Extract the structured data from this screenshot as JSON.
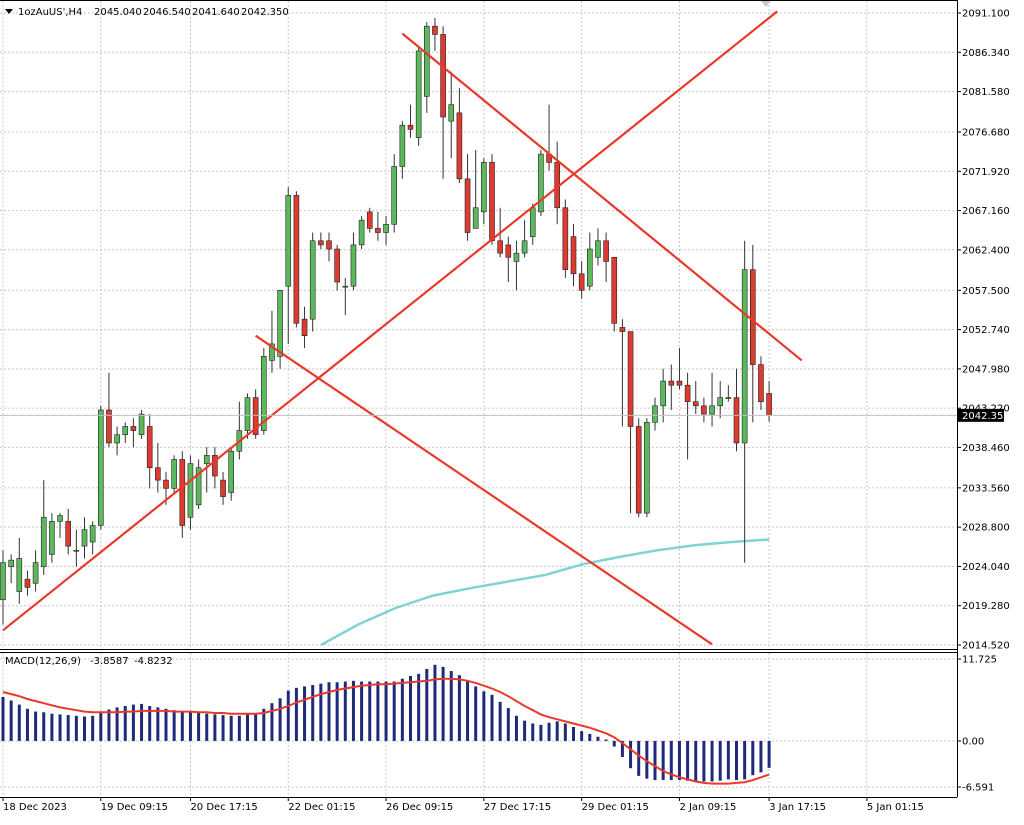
{
  "header": {
    "symbol": "1ozAuUS',H4",
    "open": "2045.040",
    "high": "2046.540",
    "low": "2041.640",
    "close": "2042.350"
  },
  "macd_header": {
    "label": "MACD(12,26,9)",
    "main": "-3.8587",
    "signal": "-4.8232"
  },
  "colors": {
    "bull": "#5cb85c",
    "bear": "#dd3b2f",
    "wick": "#333333",
    "ma": "#7fd3d3",
    "trendline": "#e8392b",
    "macd_hist": "#1f2a7a",
    "macd_signal": "#e8392b",
    "grid": "#c8c8c8"
  },
  "chart_data": [
    {
      "type": "candlestick",
      "timeframe": "H4",
      "ylim": [
        2014.52,
        2091.1
      ],
      "y_ticks": [
        "2091.100",
        "2086.340",
        "2081.580",
        "2076.680",
        "2071.920",
        "2067.160",
        "2062.400",
        "2057.500",
        "2052.740",
        "2047.980",
        "2043.220",
        "2038.460",
        "2033.560",
        "2028.800",
        "2024.040",
        "2019.280",
        "2014.520"
      ],
      "x_ticks": [
        "18 Dec 2023",
        "19 Dec 09:15",
        "20 Dec 17:15",
        "22 Dec 01:15",
        "26 Dec 09:15",
        "27 Dec 17:15",
        "29 Dec 01:15",
        "2 Jan 09:15",
        "3 Jan 17:15",
        "5 Jan 01:15"
      ],
      "x_tick_bars": [
        0,
        12,
        23,
        35,
        47,
        59,
        71,
        83,
        94,
        106
      ],
      "current_price": "2042.350",
      "ohlc": [
        [
          2020.0,
          2026.0,
          2017.0,
          2024.5
        ],
        [
          2024.0,
          2025.5,
          2022.0,
          2024.8
        ],
        [
          2021.0,
          2027.5,
          2019.5,
          2025.0
        ],
        [
          2022.5,
          2023.5,
          2020.5,
          2021.5
        ],
        [
          2022.0,
          2026.0,
          2021.0,
          2024.5
        ],
        [
          2024.0,
          2034.5,
          2023.0,
          2030.0
        ],
        [
          2025.5,
          2030.5,
          2024.5,
          2029.5
        ],
        [
          2029.5,
          2030.5,
          2027.5,
          2030.2
        ],
        [
          2029.5,
          2031.0,
          2025.5,
          2026.5
        ],
        [
          2026.0,
          2028.5,
          2024.0,
          2026.0
        ],
        [
          2026.5,
          2030.0,
          2025.0,
          2028.5
        ],
        [
          2027.0,
          2029.5,
          2025.5,
          2029.0
        ],
        [
          2029.0,
          2043.5,
          2028.5,
          2043.0
        ],
        [
          2043.0,
          2047.5,
          2038.5,
          2039.0
        ],
        [
          2039.0,
          2041.0,
          2037.5,
          2040.0
        ],
        [
          2040.0,
          2041.5,
          2039.0,
          2041.0
        ],
        [
          2041.0,
          2042.0,
          2038.5,
          2040.5
        ],
        [
          2040.0,
          2043.0,
          2039.5,
          2042.5
        ],
        [
          2041.0,
          2042.5,
          2033.5,
          2036.0
        ],
        [
          2036.0,
          2039.0,
          2033.0,
          2034.5
        ],
        [
          2034.5,
          2035.5,
          2031.5,
          2033.5
        ],
        [
          2033.5,
          2037.5,
          2033.0,
          2037.0
        ],
        [
          2037.0,
          2038.0,
          2027.5,
          2029.0
        ],
        [
          2030.0,
          2037.5,
          2028.5,
          2036.5
        ],
        [
          2031.5,
          2037.0,
          2031.0,
          2036.0
        ],
        [
          2036.5,
          2038.5,
          2033.0,
          2037.5
        ],
        [
          2037.5,
          2038.5,
          2033.5,
          2035.0
        ],
        [
          2034.5,
          2035.5,
          2031.5,
          2032.5
        ],
        [
          2033.0,
          2038.5,
          2032.0,
          2038.0
        ],
        [
          2038.0,
          2044.0,
          2037.0,
          2040.5
        ],
        [
          2040.5,
          2045.0,
          2039.5,
          2044.5
        ],
        [
          2044.5,
          2045.5,
          2039.5,
          2040.0
        ],
        [
          2040.5,
          2050.5,
          2040.0,
          2049.5
        ],
        [
          2049.0,
          2055.0,
          2047.5,
          2051.0
        ],
        [
          2049.5,
          2057.0,
          2048.0,
          2057.5
        ],
        [
          2058.0,
          2070.0,
          2051.0,
          2069.0
        ],
        [
          2069.0,
          2069.5,
          2053.0,
          2053.5
        ],
        [
          2054.0,
          2055.5,
          2050.5,
          2052.0
        ],
        [
          2054.0,
          2064.5,
          2052.5,
          2063.5
        ],
        [
          2063.5,
          2064.5,
          2062.5,
          2063.0
        ],
        [
          2063.5,
          2064.5,
          2061.0,
          2062.5
        ],
        [
          2062.5,
          2063.0,
          2057.5,
          2058.5
        ],
        [
          2058.0,
          2059.0,
          2054.5,
          2058.0
        ],
        [
          2058.0,
          2064.5,
          2057.5,
          2063.0
        ],
        [
          2063.0,
          2066.5,
          2062.5,
          2066.0
        ],
        [
          2067.0,
          2067.5,
          2064.5,
          2065.0
        ],
        [
          2065.0,
          2067.0,
          2063.5,
          2064.5
        ],
        [
          2064.5,
          2066.5,
          2063.0,
          2065.5
        ],
        [
          2065.5,
          2074.0,
          2064.5,
          2072.5
        ],
        [
          2072.5,
          2078.0,
          2071.0,
          2077.5
        ],
        [
          2077.5,
          2080.0,
          2076.0,
          2077.0
        ],
        [
          2076.0,
          2087.0,
          2075.0,
          2086.5
        ],
        [
          2081.0,
          2090.0,
          2079.0,
          2089.5
        ],
        [
          2089.5,
          2090.5,
          2086.5,
          2088.5
        ],
        [
          2088.5,
          2089.5,
          2071.0,
          2078.5
        ],
        [
          2078.0,
          2084.0,
          2073.5,
          2080.0
        ],
        [
          2079.0,
          2082.0,
          2070.5,
          2071.0
        ],
        [
          2071.0,
          2074.0,
          2063.5,
          2064.5
        ],
        [
          2065.0,
          2074.5,
          2065.0,
          2067.5
        ],
        [
          2067.0,
          2073.5,
          2065.5,
          2073.0
        ],
        [
          2073.0,
          2074.0,
          2063.0,
          2063.5
        ],
        [
          2063.5,
          2067.5,
          2061.5,
          2062.0
        ],
        [
          2063.0,
          2064.0,
          2058.5,
          2061.5
        ],
        [
          2061.0,
          2063.5,
          2057.5,
          2062.0
        ],
        [
          2062.0,
          2066.0,
          2061.5,
          2063.5
        ],
        [
          2064.0,
          2068.0,
          2063.0,
          2067.5
        ],
        [
          2067.0,
          2074.5,
          2066.5,
          2074.0
        ],
        [
          2074.0,
          2080.0,
          2072.0,
          2073.0
        ],
        [
          2073.0,
          2075.5,
          2065.5,
          2067.5
        ],
        [
          2067.5,
          2068.5,
          2059.0,
          2060.0
        ],
        [
          2064.0,
          2065.5,
          2058.0,
          2059.5
        ],
        [
          2059.5,
          2061.0,
          2056.5,
          2057.5
        ],
        [
          2058.0,
          2064.5,
          2057.5,
          2062.5
        ],
        [
          2061.5,
          2065.0,
          2060.5,
          2063.5
        ],
        [
          2063.5,
          2064.5,
          2058.5,
          2061.0
        ],
        [
          2061.5,
          2061.5,
          2052.5,
          2053.5
        ],
        [
          2053.0,
          2054.0,
          2041.0,
          2052.5
        ],
        [
          2052.5,
          2052.5,
          2030.5,
          2041.0
        ],
        [
          2041.0,
          2042.0,
          2030.0,
          2030.5
        ],
        [
          2030.5,
          2042.0,
          2030.0,
          2041.5
        ],
        [
          2041.5,
          2044.5,
          2040.5,
          2043.5
        ],
        [
          2043.5,
          2048.0,
          2041.5,
          2046.5
        ],
        [
          2046.5,
          2048.5,
          2043.0,
          2046.0
        ],
        [
          2046.5,
          2050.5,
          2045.5,
          2046.0
        ],
        [
          2046.0,
          2047.5,
          2037.0,
          2044.0
        ],
        [
          2044.0,
          2046.5,
          2042.5,
          2043.5
        ],
        [
          2043.5,
          2044.5,
          2041.5,
          2042.5
        ],
        [
          2042.5,
          2047.5,
          2041.0,
          2043.5
        ],
        [
          2043.5,
          2046.5,
          2042.0,
          2044.5
        ],
        [
          2044.5,
          2046.0,
          2044.0,
          2044.5
        ],
        [
          2044.5,
          2048.0,
          2038.0,
          2039.0
        ],
        [
          2039.0,
          2063.5,
          2024.5,
          2060.0
        ],
        [
          2060.0,
          2063.0,
          2041.5,
          2048.5
        ],
        [
          2048.5,
          2049.5,
          2043.0,
          2044.0
        ],
        [
          2045.0,
          2046.5,
          2041.6,
          2042.35
        ]
      ],
      "moving_average_tail": [
        2014.52,
        2017.0,
        2019.0,
        2020.5,
        2021.4,
        2022.2,
        2023.0,
        2024.3,
        2025.2,
        2026.0,
        2026.6,
        2027.0,
        2027.3
      ],
      "ma_start_bar": 39,
      "trendlines": [
        {
          "from": [
            0,
            2016.3
          ],
          "to": [
            95,
            2091.3
          ]
        },
        {
          "from": [
            49,
            2088.6
          ],
          "to": [
            98,
            2049.0
          ]
        },
        {
          "from": [
            31,
            2052.0
          ],
          "to": [
            87,
            2014.6
          ]
        }
      ]
    },
    {
      "type": "bar",
      "title": "MACD(12,26,9)",
      "ylim": [
        -6.591,
        11.725
      ],
      "y_ticks": [
        "11.725",
        "0.00",
        "-6.591"
      ],
      "histogram": [
        6.3,
        5.8,
        5.2,
        4.6,
        4.2,
        4.1,
        3.9,
        3.8,
        3.7,
        3.6,
        3.5,
        3.6,
        4.0,
        4.5,
        4.8,
        5.0,
        5.2,
        5.3,
        5.0,
        4.8,
        4.6,
        4.4,
        4.2,
        4.1,
        4.0,
        3.9,
        3.8,
        3.7,
        3.6,
        3.6,
        3.8,
        3.9,
        4.6,
        5.4,
        6.1,
        7.2,
        7.6,
        7.8,
        8.0,
        8.2,
        8.4,
        8.4,
        8.5,
        8.6,
        8.5,
        8.5,
        8.5,
        8.5,
        8.5,
        8.9,
        9.3,
        9.6,
        10.3,
        10.9,
        10.6,
        10.0,
        9.4,
        8.6,
        7.8,
        7.1,
        6.6,
        5.6,
        4.7,
        3.6,
        2.9,
        2.5,
        2.3,
        2.6,
        2.8,
        2.5,
        2.0,
        1.4,
        1.0,
        0.6,
        0.2,
        -0.8,
        -2.3,
        -3.9,
        -5.0,
        -5.4,
        -5.6,
        -5.6,
        -5.6,
        -5.6,
        -5.7,
        -5.8,
        -5.8,
        -5.8,
        -5.7,
        -5.5,
        -5.6,
        -5.5,
        -4.9,
        -4.5,
        -3.85
      ],
      "signal": [
        7.0,
        6.7,
        6.4,
        6.0,
        5.7,
        5.4,
        5.1,
        4.8,
        4.6,
        4.4,
        4.2,
        4.1,
        4.1,
        4.1,
        4.1,
        4.2,
        4.2,
        4.3,
        4.3,
        4.3,
        4.3,
        4.2,
        4.2,
        4.2,
        4.1,
        4.1,
        4.0,
        4.0,
        3.9,
        3.9,
        3.9,
        3.9,
        4.0,
        4.3,
        4.6,
        5.0,
        5.5,
        5.9,
        6.3,
        6.7,
        7.0,
        7.3,
        7.5,
        7.7,
        7.9,
        8.0,
        8.1,
        8.1,
        8.2,
        8.3,
        8.4,
        8.5,
        8.6,
        8.8,
        8.9,
        8.9,
        8.8,
        8.6,
        8.3,
        7.9,
        7.5,
        7.0,
        6.4,
        5.7,
        5.0,
        4.4,
        3.8,
        3.4,
        3.1,
        2.8,
        2.5,
        2.2,
        1.9,
        1.5,
        1.1,
        0.5,
        -0.3,
        -1.2,
        -2.1,
        -2.9,
        -3.6,
        -4.3,
        -4.8,
        -5.2,
        -5.5,
        -5.8,
        -6.0,
        -6.1,
        -6.1,
        -6.1,
        -6.0,
        -5.9,
        -5.6,
        -5.2,
        -4.82
      ]
    }
  ]
}
